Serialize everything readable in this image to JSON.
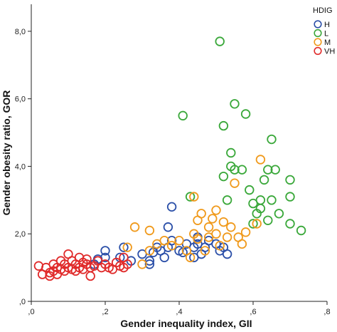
{
  "chart_data": {
    "type": "scatter",
    "xlabel": "Gender inequality index, GII",
    "ylabel": "Gender obesity ratio, GOR",
    "xlim": [
      0,
      0.8
    ],
    "ylim": [
      0,
      8.8
    ],
    "x_ticks": [
      ",0",
      ",2",
      ",4",
      ",6",
      ",8"
    ],
    "y_ticks": [
      ",0",
      "2,0",
      "4,0",
      "6,0",
      "8,0"
    ],
    "x_tick_values": [
      0,
      0.2,
      0.4,
      0.6,
      0.8
    ],
    "y_tick_values": [
      0,
      2,
      4,
      6,
      8
    ],
    "legend": {
      "title": "HDIG",
      "placement": "top-right"
    },
    "grid": false,
    "series": [
      {
        "name": "H",
        "color": "#2b4fa8",
        "points": [
          [
            0.17,
            1.1
          ],
          [
            0.18,
            1.25
          ],
          [
            0.2,
            1.3
          ],
          [
            0.2,
            1.5
          ],
          [
            0.24,
            1.3
          ],
          [
            0.25,
            1.6
          ],
          [
            0.27,
            1.2
          ],
          [
            0.3,
            1.4
          ],
          [
            0.32,
            1.1
          ],
          [
            0.32,
            1.2
          ],
          [
            0.33,
            1.45
          ],
          [
            0.34,
            1.6
          ],
          [
            0.35,
            1.5
          ],
          [
            0.36,
            1.3
          ],
          [
            0.37,
            1.6
          ],
          [
            0.37,
            2.2
          ],
          [
            0.38,
            2.8
          ],
          [
            0.38,
            1.8
          ],
          [
            0.4,
            1.5
          ],
          [
            0.41,
            1.45
          ],
          [
            0.42,
            1.7
          ],
          [
            0.44,
            1.6
          ],
          [
            0.44,
            1.3
          ],
          [
            0.45,
            1.7
          ],
          [
            0.45,
            1.9
          ],
          [
            0.46,
            1.4
          ],
          [
            0.47,
            1.6
          ],
          [
            0.48,
            1.8
          ],
          [
            0.5,
            1.7
          ],
          [
            0.51,
            1.5
          ],
          [
            0.52,
            1.6
          ],
          [
            0.53,
            1.4
          ]
        ]
      },
      {
        "name": "L",
        "color": "#3aa83a",
        "points": [
          [
            0.41,
            5.5
          ],
          [
            0.43,
            3.1
          ],
          [
            0.51,
            7.7
          ],
          [
            0.52,
            5.2
          ],
          [
            0.52,
            3.7
          ],
          [
            0.53,
            3.0
          ],
          [
            0.54,
            4.4
          ],
          [
            0.54,
            4.0
          ],
          [
            0.55,
            3.9
          ],
          [
            0.55,
            5.85
          ],
          [
            0.57,
            3.9
          ],
          [
            0.58,
            5.55
          ],
          [
            0.59,
            3.3
          ],
          [
            0.6,
            2.3
          ],
          [
            0.6,
            2.9
          ],
          [
            0.61,
            2.6
          ],
          [
            0.62,
            2.75
          ],
          [
            0.62,
            3.0
          ],
          [
            0.63,
            3.6
          ],
          [
            0.64,
            2.4
          ],
          [
            0.64,
            3.9
          ],
          [
            0.65,
            4.8
          ],
          [
            0.65,
            3.0
          ],
          [
            0.66,
            3.9
          ],
          [
            0.67,
            2.6
          ],
          [
            0.7,
            2.3
          ],
          [
            0.7,
            3.1
          ],
          [
            0.7,
            3.6
          ],
          [
            0.73,
            2.1
          ]
        ]
      },
      {
        "name": "M",
        "color": "#f09a1c",
        "points": [
          [
            0.26,
            1.6
          ],
          [
            0.28,
            2.2
          ],
          [
            0.3,
            1.1
          ],
          [
            0.32,
            1.5
          ],
          [
            0.32,
            2.1
          ],
          [
            0.34,
            1.7
          ],
          [
            0.36,
            1.8
          ],
          [
            0.38,
            1.65
          ],
          [
            0.4,
            1.8
          ],
          [
            0.42,
            1.5
          ],
          [
            0.43,
            1.3
          ],
          [
            0.44,
            2.0
          ],
          [
            0.44,
            3.1
          ],
          [
            0.45,
            1.85
          ],
          [
            0.45,
            2.4
          ],
          [
            0.46,
            2.6
          ],
          [
            0.47,
            1.5
          ],
          [
            0.48,
            2.2
          ],
          [
            0.48,
            1.9
          ],
          [
            0.49,
            2.45
          ],
          [
            0.5,
            2.7
          ],
          [
            0.5,
            2.0
          ],
          [
            0.51,
            1.65
          ],
          [
            0.52,
            2.35
          ],
          [
            0.53,
            1.9
          ],
          [
            0.54,
            2.2
          ],
          [
            0.55,
            3.5
          ],
          [
            0.56,
            1.9
          ],
          [
            0.57,
            1.7
          ],
          [
            0.58,
            2.05
          ],
          [
            0.61,
            2.3
          ],
          [
            0.62,
            4.2
          ]
        ]
      },
      {
        "name": "VH",
        "color": "#e02b2b",
        "points": [
          [
            0.02,
            1.05
          ],
          [
            0.03,
            0.8
          ],
          [
            0.04,
            1.0
          ],
          [
            0.05,
            0.85
          ],
          [
            0.05,
            0.75
          ],
          [
            0.06,
            0.9
          ],
          [
            0.06,
            1.1
          ],
          [
            0.07,
            0.8
          ],
          [
            0.07,
            1.0
          ],
          [
            0.08,
            0.95
          ],
          [
            0.08,
            1.2
          ],
          [
            0.09,
            0.9
          ],
          [
            0.09,
            1.1
          ],
          [
            0.1,
            1.0
          ],
          [
            0.1,
            1.4
          ],
          [
            0.11,
            0.95
          ],
          [
            0.11,
            1.2
          ],
          [
            0.12,
            1.1
          ],
          [
            0.12,
            0.9
          ],
          [
            0.13,
            1.3
          ],
          [
            0.13,
            1.0
          ],
          [
            0.14,
            1.15
          ],
          [
            0.14,
            0.95
          ],
          [
            0.15,
            1.1
          ],
          [
            0.15,
            1.25
          ],
          [
            0.16,
            1.0
          ],
          [
            0.16,
            0.75
          ],
          [
            0.17,
            1.05
          ],
          [
            0.18,
            1.2
          ],
          [
            0.19,
            1.0
          ],
          [
            0.2,
            1.1
          ],
          [
            0.21,
            1.0
          ],
          [
            0.22,
            0.95
          ],
          [
            0.23,
            1.15
          ],
          [
            0.24,
            1.05
          ],
          [
            0.25,
            1.0
          ],
          [
            0.25,
            1.3
          ],
          [
            0.26,
            1.1
          ]
        ]
      }
    ]
  }
}
